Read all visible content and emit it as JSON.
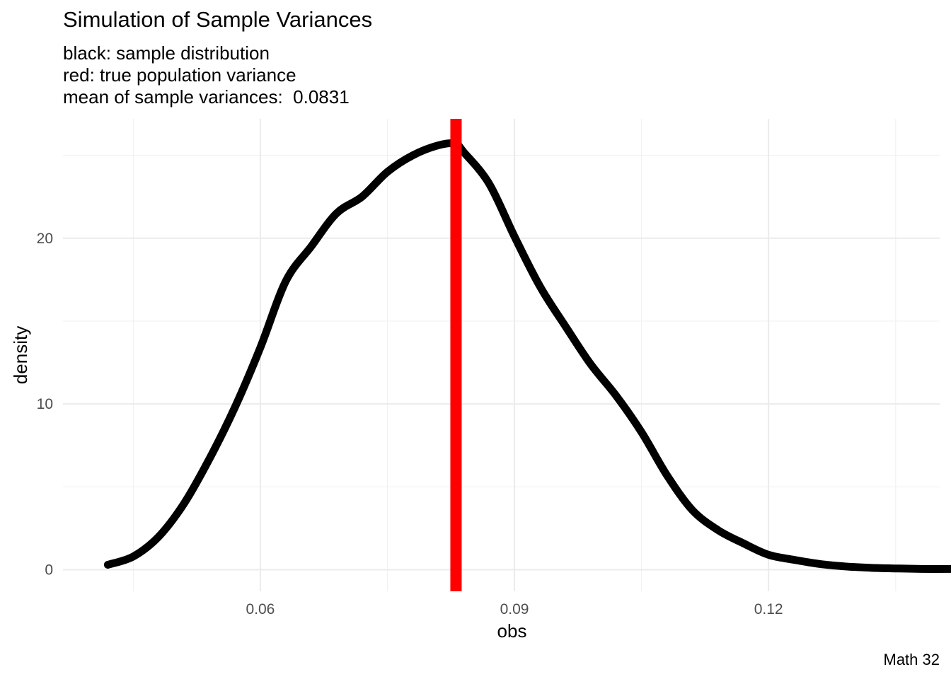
{
  "chart_data": {
    "type": "line",
    "title": "Simulation of Sample Variances",
    "subtitle_lines": [
      "black: sample distribution",
      "red: true population variance",
      "mean of sample variances:  0.0831"
    ],
    "caption": "Math 32",
    "xlabel": "obs",
    "ylabel": "density",
    "xlim": [
      0.0367,
      0.1402
    ],
    "ylim": [
      -1.3,
      27.2
    ],
    "x_ticks": [
      0.06,
      0.09,
      0.12
    ],
    "x_tick_labels": [
      "0.06",
      "0.09",
      "0.12"
    ],
    "y_ticks": [
      0,
      10,
      20
    ],
    "y_tick_labels": [
      "0",
      "10",
      "20"
    ],
    "minor_x": [
      0.045,
      0.075,
      0.105,
      0.135
    ],
    "minor_y": [
      5,
      15,
      25
    ],
    "grid": true,
    "series": [
      {
        "color": "#000000",
        "x": [
          0.042,
          0.045,
          0.048,
          0.051,
          0.054,
          0.057,
          0.06,
          0.063,
          0.066,
          0.069,
          0.072,
          0.075,
          0.078,
          0.081,
          0.083,
          0.084,
          0.087,
          0.09,
          0.093,
          0.096,
          0.099,
          0.102,
          0.105,
          0.108,
          0.111,
          0.114,
          0.117,
          0.12,
          0.123,
          0.126,
          0.129,
          0.132,
          0.135,
          0.138,
          0.1418
        ],
        "y": [
          0.3,
          0.8,
          2.0,
          4.0,
          6.7,
          9.8,
          13.4,
          17.4,
          19.5,
          21.5,
          22.5,
          24.0,
          25.0,
          25.6,
          25.7,
          25.2,
          23.3,
          20.1,
          17.1,
          14.7,
          12.4,
          10.5,
          8.3,
          5.7,
          3.6,
          2.4,
          1.6,
          0.9,
          0.6,
          0.35,
          0.2,
          0.12,
          0.08,
          0.05,
          0.05
        ]
      }
    ],
    "vline": {
      "x": 0.0831,
      "color": "#ff0000"
    }
  }
}
